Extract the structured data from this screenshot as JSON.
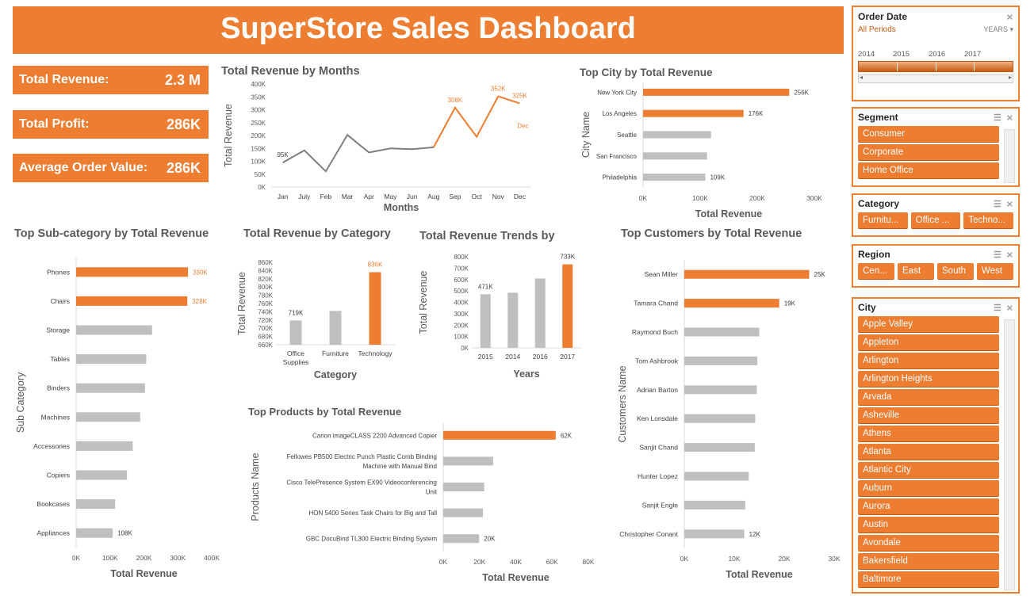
{
  "title": "SuperStore Sales Dashboard",
  "kpis": {
    "revenue_label": "Total Revenue:",
    "revenue_value": "2.3 M",
    "profit_label": "Total Profit:",
    "profit_value": "286K",
    "aov_label": "Average Order Value:",
    "aov_value": "286K"
  },
  "colors": {
    "accent": "#ed7d31",
    "neutral_bar": "#bfbfbf",
    "line": "#7f7f7f"
  },
  "chart_data": [
    {
      "id": "months",
      "type": "line",
      "title": "Total Revenue by Months",
      "xlabel": "Months",
      "ylabel": "Total Revenue",
      "categories": [
        "Jan",
        "July",
        "Feb",
        "Mar",
        "Apr",
        "May",
        "Jun",
        "Aug",
        "Sep",
        "Oct",
        "Nov",
        "Dec"
      ],
      "values": [
        95,
        142,
        61,
        202,
        134,
        150,
        147,
        154,
        308,
        195,
        352,
        325
      ],
      "ylim": [
        0,
        400
      ],
      "yticks": [
        "0K",
        "50K",
        "100K",
        "150K",
        "200K",
        "250K",
        "300K",
        "350K",
        "400K"
      ],
      "labels": {
        "0": "95K",
        "8": "308K",
        "10": "352K",
        "11": "325K"
      },
      "annotation": "Dec"
    },
    {
      "id": "city",
      "type": "bar",
      "orientation": "horizontal",
      "title": "Top City by Total Revenue",
      "xlabel": "Total Revenue",
      "ylabel": "City Name",
      "categories": [
        "New York City",
        "Los Angeles",
        "Seattle",
        "San Francisco",
        "Philadelphia"
      ],
      "values": [
        256,
        176,
        119,
        112,
        109
      ],
      "highlight": [
        0,
        1
      ],
      "xlim": [
        0,
        300
      ],
      "xticks": [
        "0K",
        "100K",
        "200K",
        "300K"
      ],
      "labels": {
        "0": "256K",
        "1": "176K",
        "4": "109K"
      }
    },
    {
      "id": "subcat",
      "type": "bar",
      "orientation": "horizontal",
      "title": "Top Sub-category by Total Revenue",
      "xlabel": "Total Revenue",
      "ylabel": "Sub Category",
      "categories": [
        "Phones",
        "Chairs",
        "Storage",
        "Tables",
        "Binders",
        "Machines",
        "Accessories",
        "Copiers",
        "Bookcases",
        "Appliances"
      ],
      "values": [
        330,
        328,
        224,
        207,
        203,
        189,
        167,
        150,
        115,
        108
      ],
      "highlight": [
        0,
        1
      ],
      "xlim": [
        0,
        400
      ],
      "xticks": [
        "0K",
        "100K",
        "200K",
        "300K",
        "400K"
      ],
      "labels": {
        "0": "330K",
        "1": "328K",
        "9": "108K"
      }
    },
    {
      "id": "category",
      "type": "bar",
      "title": "Total Revenue by Category",
      "xlabel": "Category",
      "ylabel": "Total Revenue",
      "categories": [
        "Office Supplies",
        "Furniture",
        "Technology"
      ],
      "values": [
        719,
        742,
        836
      ],
      "highlight": [
        2
      ],
      "ylim": [
        660,
        860
      ],
      "yticks": [
        "660K",
        "680K",
        "700K",
        "720K",
        "740K",
        "760K",
        "780K",
        "800K",
        "820K",
        "840K",
        "860K"
      ],
      "labels": {
        "0": "719K",
        "2": "836K"
      }
    },
    {
      "id": "years",
      "type": "bar",
      "title": "Total Revenue Trends by",
      "xlabel": "Years",
      "ylabel": "Total Revenue",
      "categories": [
        "2015",
        "2014",
        "2016",
        "2017"
      ],
      "values": [
        471,
        484,
        609,
        733
      ],
      "highlight": [
        3
      ],
      "ylim": [
        0,
        800
      ],
      "yticks": [
        "0K",
        "100K",
        "200K",
        "300K",
        "400K",
        "500K",
        "600K",
        "700K",
        "800K"
      ],
      "labels": {
        "0": "471K",
        "3": "733K"
      }
    },
    {
      "id": "products",
      "type": "bar",
      "orientation": "horizontal",
      "title": "Top Products by Total Revenue",
      "xlabel": "Total Revenue",
      "ylabel": "Products Name",
      "categories": [
        [
          "Canon imageCLASS 2200 Advanced Copier"
        ],
        [
          "Fellowes PB500 Electric Punch Plastic Comb Binding",
          "Machine with Manual Bind"
        ],
        [
          "Cisco TelePresence System EX90 Videoconferencing",
          "Unit"
        ],
        [
          "HON 5400 Series Task Chairs for Big and Tall"
        ],
        [
          "GBC DocuBind TL300 Electric Binding System"
        ]
      ],
      "values": [
        62,
        27.5,
        22.6,
        21.9,
        19.8
      ],
      "highlight": [
        0
      ],
      "xlim": [
        0,
        80
      ],
      "xticks": [
        "0K",
        "20K",
        "40K",
        "60K",
        "80K"
      ],
      "labels": {
        "0": "62K",
        "4": "20K"
      }
    },
    {
      "id": "customers",
      "type": "bar",
      "orientation": "horizontal",
      "title": "Top Customers by Total Revenue",
      "xlabel": "Total Revenue",
      "ylabel": "Customers Name",
      "categories": [
        "Sean Miller",
        "Tamara Chand",
        "Raymond Buch",
        "Tom Ashbrook",
        "Adrian Barton",
        "Ken Lonsdale",
        "Sanjit Chand",
        "Hunter Lopez",
        "Sanjit Engle",
        "Christopher Conant"
      ],
      "values": [
        25,
        19,
        15,
        14.6,
        14.5,
        14.2,
        14.1,
        12.9,
        12.2,
        12
      ],
      "highlight": [
        0,
        1
      ],
      "xlim": [
        0,
        30
      ],
      "xticks": [
        "0K",
        "10K",
        "20K",
        "30K"
      ],
      "labels": {
        "0": "25K",
        "1": "19K",
        "9": "12K"
      }
    }
  ],
  "slicers": {
    "order_date": {
      "title": "Order Date",
      "all_periods": "All Periods",
      "level": "YEARS",
      "years": [
        "2014",
        "2015",
        "2016",
        "2017"
      ]
    },
    "segment": {
      "title": "Segment",
      "items": [
        "Consumer",
        "Corporate",
        "Home Office"
      ]
    },
    "category": {
      "title": "Category",
      "items": [
        "Furnitu...",
        "Office ...",
        "Techno..."
      ]
    },
    "region": {
      "title": "Region",
      "items": [
        "Cen...",
        "East",
        "South",
        "West"
      ]
    },
    "city": {
      "title": "City",
      "items": [
        "Apple Valley",
        "Appleton",
        "Arlington",
        "Arlington Heights",
        "Arvada",
        "Asheville",
        "Athens",
        "Atlanta",
        "Atlantic City",
        "Auburn",
        "Aurora",
        "Austin",
        "Avondale",
        "Bakersfield",
        "Baltimore"
      ]
    }
  }
}
